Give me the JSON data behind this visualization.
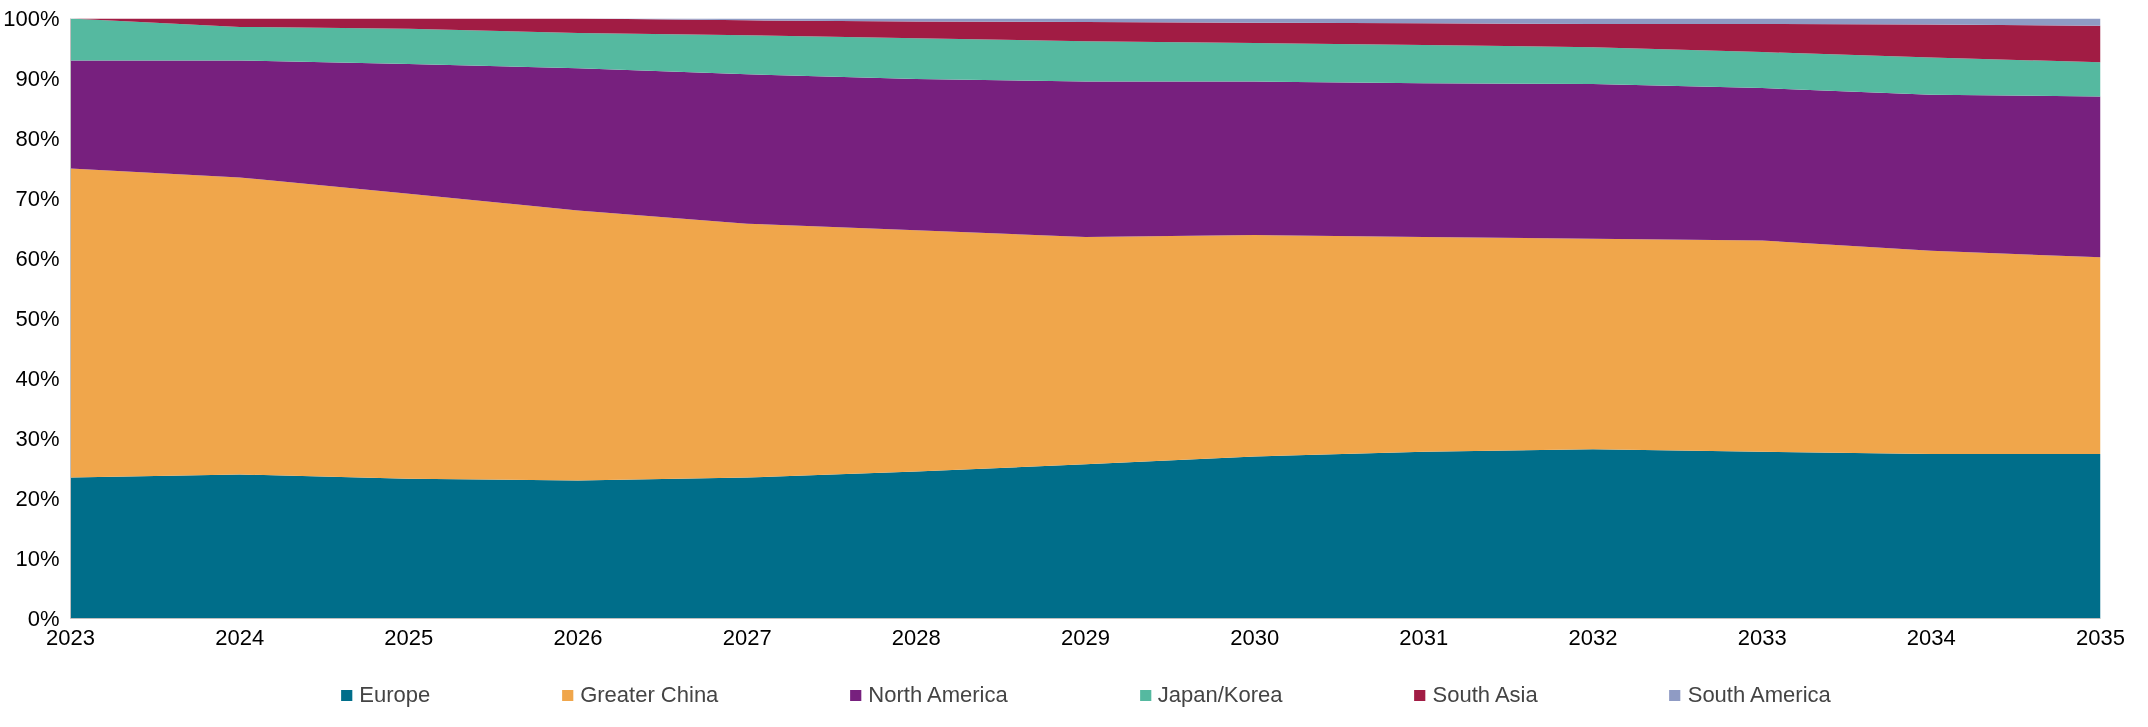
{
  "chart_data": {
    "type": "area",
    "stacked": true,
    "x": [
      2023,
      2024,
      2025,
      2026,
      2027,
      2028,
      2029,
      2030,
      2031,
      2032,
      2033,
      2034,
      2035
    ],
    "series": [
      {
        "name": "Europe",
        "color": "#006e8a",
        "values": [
          23.5,
          24,
          23.3,
          23,
          23.5,
          24.5,
          25.7,
          27,
          27.8,
          28.2,
          27.8,
          27.4,
          27.4
        ]
      },
      {
        "name": "Greater China",
        "color": "#f0a64b",
        "values": [
          51.5,
          49.5,
          47.5,
          45,
          42.3,
          40.2,
          37.9,
          36.9,
          35.8,
          35.1,
          35.2,
          33.9,
          32.8
        ]
      },
      {
        "name": "North America",
        "color": "#77207e",
        "values": [
          18,
          19.5,
          21.6,
          23.7,
          24.9,
          25.2,
          25.9,
          25.6,
          25.6,
          25.8,
          25.4,
          26,
          26.8
        ]
      },
      {
        "name": "Japan/Korea",
        "color": "#55b9a0",
        "values": [
          7,
          5.6,
          5.9,
          5.9,
          6.5,
          6.8,
          6.7,
          6.4,
          6.4,
          6.1,
          6,
          6.2,
          5.7
        ]
      },
      {
        "name": "South Asia",
        "color": "#a11c44",
        "values": [
          0,
          1.4,
          1.7,
          2.4,
          2.5,
          2.8,
          3.2,
          3.4,
          3.6,
          3.9,
          4.7,
          5.5,
          6.1
        ]
      },
      {
        "name": "South America",
        "color": "#8f9bc4",
        "values": [
          0,
          0,
          0,
          0,
          0.3,
          0.5,
          0.6,
          0.7,
          0.8,
          0.9,
          0.9,
          1,
          1.2
        ]
      }
    ],
    "xlim": [
      2023,
      2035
    ],
    "xticks": [
      2023,
      2024,
      2025,
      2026,
      2027,
      2028,
      2029,
      2030,
      2031,
      2032,
      2033,
      2034,
      2035
    ],
    "ylim": [
      0,
      100
    ],
    "yticks": [
      {
        "value": 0,
        "label": "0%"
      },
      {
        "value": 10,
        "label": "10%"
      },
      {
        "value": 20,
        "label": "20%"
      },
      {
        "value": 30,
        "label": "30%"
      },
      {
        "value": 40,
        "label": "40%"
      },
      {
        "value": 50,
        "label": "50%"
      },
      {
        "value": 60,
        "label": "60%"
      },
      {
        "value": 70,
        "label": "70%"
      },
      {
        "value": 80,
        "label": "80%"
      },
      {
        "value": 90,
        "label": "90%"
      },
      {
        "value": 100,
        "label": "100%"
      }
    ],
    "grid": false,
    "legend": "bottom"
  }
}
